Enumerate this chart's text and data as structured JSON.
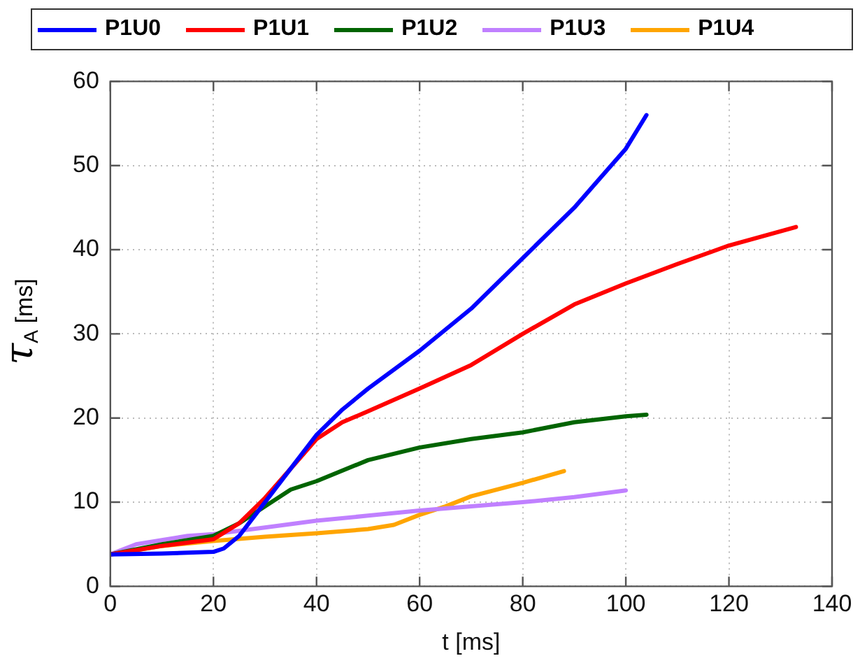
{
  "chart_data": {
    "type": "line",
    "xlabel": "t [ms]",
    "ylabel": "τ$_{A}$ [ms]",
    "xlim": [
      0,
      140
    ],
    "xticks": [
      0,
      20,
      40,
      60,
      80,
      100,
      120,
      140
    ],
    "ylim": [
      0,
      60
    ],
    "yticks": [
      0,
      10,
      20,
      30,
      40,
      50,
      60
    ],
    "grid": true,
    "legend": "top",
    "line_style": "solid",
    "marker": "none",
    "series": [
      {
        "name": "P1U0",
        "color": "#0000ff",
        "x": [
          0,
          10,
          20,
          22,
          25,
          30,
          35,
          40,
          45,
          50,
          60,
          70,
          80,
          90,
          100,
          104
        ],
        "values": [
          3.8,
          3.9,
          4.1,
          4.5,
          6,
          10,
          14,
          18,
          21,
          23.5,
          28,
          33,
          39,
          45,
          52,
          56
        ]
      },
      {
        "name": "P1U1",
        "color": "#ff0000",
        "x": [
          0,
          10,
          20,
          25,
          30,
          35,
          40,
          45,
          50,
          60,
          70,
          80,
          90,
          100,
          110,
          120,
          133
        ],
        "values": [
          3.8,
          4.8,
          5.6,
          7.5,
          10.5,
          14,
          17.5,
          19.5,
          20.8,
          23.5,
          26.3,
          30,
          33.5,
          36,
          38.3,
          40.5,
          42.7
        ]
      },
      {
        "name": "P1U2",
        "color": "#006400",
        "x": [
          0,
          10,
          20,
          25,
          30,
          35,
          40,
          50,
          60,
          70,
          80,
          90,
          100,
          104
        ],
        "values": [
          3.8,
          5,
          6,
          7.5,
          9.5,
          11.5,
          12.5,
          15,
          16.5,
          17.5,
          18.3,
          19.5,
          20.2,
          20.4
        ]
      },
      {
        "name": "P1U3",
        "color": "#c080ff",
        "x": [
          0,
          5,
          10,
          15,
          20,
          30,
          40,
          50,
          60,
          70,
          80,
          90,
          100
        ],
        "values": [
          3.8,
          5,
          5.5,
          6,
          6.2,
          7,
          7.8,
          8.4,
          9,
          9.5,
          10,
          10.6,
          11.4
        ]
      },
      {
        "name": "P1U4",
        "color": "#ffa500",
        "x": [
          0,
          10,
          20,
          30,
          40,
          50,
          55,
          60,
          65,
          70,
          80,
          88
        ],
        "values": [
          3.8,
          4.8,
          5.4,
          5.9,
          6.3,
          6.8,
          7.3,
          8.5,
          9.5,
          10.7,
          12.3,
          13.7
        ]
      }
    ]
  }
}
